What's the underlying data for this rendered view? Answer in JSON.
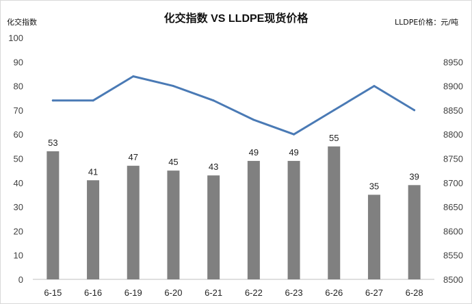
{
  "chart_data": {
    "type": "bar",
    "title": "化交指数 VS LLDPE现货价格",
    "left_axis_title": "化交指数",
    "right_axis_title": "LLDPE价格：元/吨",
    "categories": [
      "6-15",
      "6-16",
      "6-19",
      "6-20",
      "6-21",
      "6-22",
      "6-23",
      "6-26",
      "6-27",
      "6-28"
    ],
    "series": [
      {
        "name": "化交指数",
        "type": "bar",
        "axis": "left",
        "color": "#808080",
        "values": [
          53,
          41,
          47,
          45,
          43,
          49,
          49,
          55,
          35,
          39
        ]
      },
      {
        "name": "LLDPE现货价格",
        "type": "line",
        "axis": "right",
        "color": "#4a7ab5",
        "values": [
          8870,
          8870,
          8920,
          8900,
          8870,
          8830,
          8800,
          8850,
          8900,
          8850
        ]
      }
    ],
    "ylim_left": [
      0,
      100
    ],
    "yticks_left": [
      "0",
      "10",
      "20",
      "30",
      "40",
      "50",
      "60",
      "70",
      "80",
      "90",
      "100"
    ],
    "ylim_right": [
      8500,
      9000
    ],
    "yticks_right": [
      "8500",
      "8550",
      "8600",
      "8650",
      "8700",
      "8750",
      "8800",
      "8850",
      "8900",
      "8950"
    ],
    "grid": false,
    "legend": "none"
  }
}
